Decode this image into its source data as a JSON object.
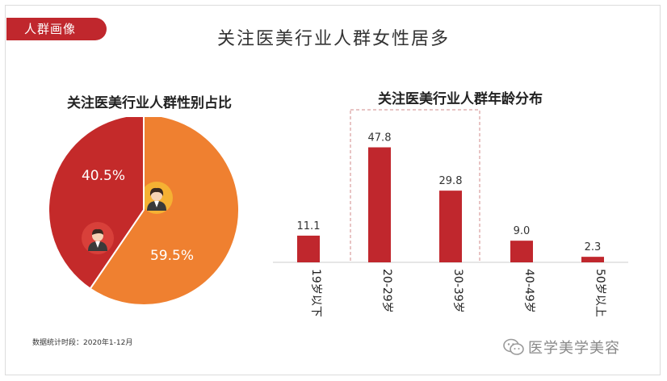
{
  "tag_label": "人群画像",
  "main_title": "关注医美行业人群女性居多",
  "footnote": "数据统计时段：2020年1-12月",
  "watermark": "医学美学美容",
  "colors": {
    "accent_red": "#c0272d",
    "female_orange": "#ef8030",
    "male_red": "#c42a2a",
    "icon_gold": "#f5b133"
  },
  "icons": {
    "female": "female-avatar-icon",
    "male": "male-avatar-icon",
    "wechat": "wechat-icon"
  },
  "chart_data": [
    {
      "type": "pie",
      "title": "关注医美行业人群性别占比",
      "slices": [
        {
          "value": 59.5,
          "label": "59.5%",
          "color": "#ef8030",
          "icon": "female-avatar-icon"
        },
        {
          "value": 40.5,
          "label": "40.5%",
          "color": "#c42a2a",
          "icon": "male-avatar-icon"
        }
      ]
    },
    {
      "type": "bar",
      "title": "关注医美行业人群年龄分布",
      "categories": [
        "19岁以下",
        "20-29岁",
        "30-39岁",
        "40-49岁",
        "50岁以上"
      ],
      "values": [
        11.1,
        47.8,
        29.8,
        9.0,
        2.3
      ],
      "value_labels": [
        "11.1",
        "47.8",
        "29.8",
        "9.0",
        "2.3"
      ],
      "highlight": [
        "20-29岁",
        "30-39岁"
      ],
      "color": "#c0272d",
      "ylim": [
        0,
        52
      ]
    }
  ]
}
